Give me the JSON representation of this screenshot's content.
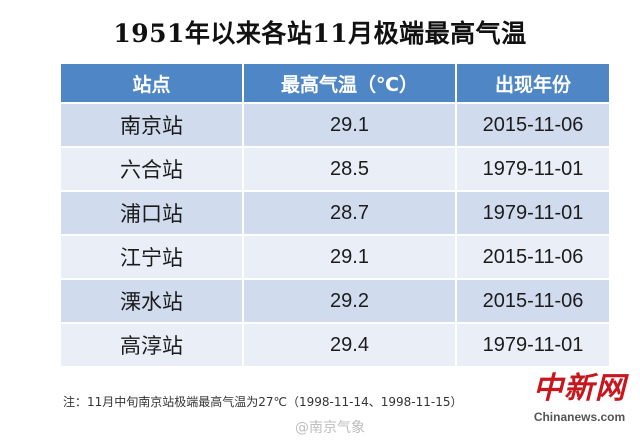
{
  "title": "1951年以来各站11月极端最高气温",
  "table": {
    "headers": [
      "站点",
      "最高气温（℃）",
      "出现年份"
    ],
    "rows": [
      {
        "station": "南京站",
        "temp": "29.1",
        "date": "2015-11-06"
      },
      {
        "station": "六合站",
        "temp": "28.5",
        "date": "1979-11-01"
      },
      {
        "station": "浦口站",
        "temp": "28.7",
        "date": "1979-11-01"
      },
      {
        "station": "江宁站",
        "temp": "29.1",
        "date": "2015-11-06"
      },
      {
        "station": "溧水站",
        "temp": "29.2",
        "date": "2015-11-06"
      },
      {
        "station": "高淳站",
        "temp": "29.4",
        "date": "1979-11-01"
      }
    ]
  },
  "note": "注：11月中旬南京站极端最高气温为27℃（1998-11-14、1998-11-15）",
  "watermark": "@南京气象",
  "logo": {
    "cn": "中新网",
    "en": "Chinanews.com"
  },
  "colors": {
    "header_bg": "#4f86c6",
    "row_odd_bg": "#d0dbee",
    "row_even_bg": "#e9eef7",
    "logo_red": "#c8161d"
  }
}
